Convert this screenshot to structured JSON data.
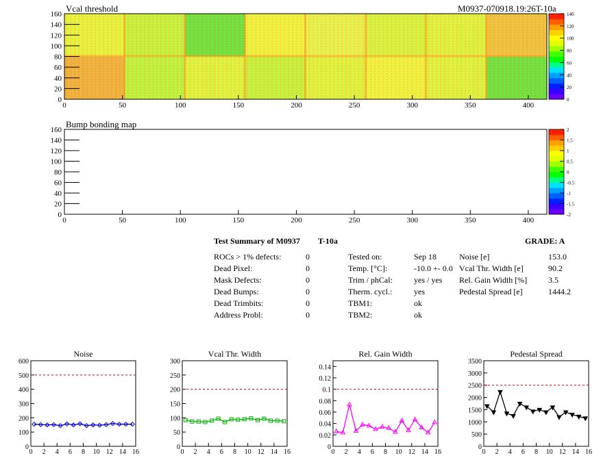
{
  "header": {
    "title": "Vcal threshold",
    "module_id": "M0937-070918.19:26T-10a"
  },
  "bump_title": "Bump bonding map",
  "colors": {
    "palette": [
      "#6a00ff",
      "#3a00ff",
      "#0020ff",
      "#0060ff",
      "#00a0ff",
      "#00e0ff",
      "#00ff80",
      "#00ff00",
      "#40ff00",
      "#a0ff00",
      "#e0ff00",
      "#ffff00",
      "#ffd000",
      "#ffa000",
      "#ff6000",
      "#ff2000"
    ],
    "limit_line": "#cc0000",
    "noise": "#0000cc",
    "vcal": "#00b000",
    "gain": "#ff00ff",
    "pedestal": "#000000"
  },
  "main_plot": {
    "x_ticks": [
      "0",
      "50",
      "100",
      "150",
      "200",
      "250",
      "300",
      "350",
      "400"
    ],
    "y_ticks": [
      "0",
      "20",
      "40",
      "60",
      "80",
      "100",
      "120",
      "140",
      "160"
    ],
    "palette_ticks": [
      "0",
      "20",
      "40",
      "60",
      "80",
      "100",
      "120",
      "140"
    ]
  },
  "bump_plot": {
    "x_ticks": [
      "0",
      "50",
      "100",
      "150",
      "200",
      "250",
      "300",
      "350",
      "400"
    ],
    "y_ticks": [
      "0",
      "20",
      "40",
      "60",
      "80",
      "100",
      "120",
      "140",
      "160"
    ],
    "palette_ticks": [
      "-2",
      "-1.5",
      "-1",
      "-0.5",
      "0",
      "0.5",
      "1",
      "1.5",
      "2"
    ]
  },
  "summary": {
    "title": "Test Summary of M0937",
    "temp_tag": "T-10a",
    "grade": "GRADE:  A",
    "defects": [
      {
        "label": "ROCs > 1% defects:",
        "value": "0"
      },
      {
        "label": "Dead Pixel:",
        "value": "0"
      },
      {
        "label": "Mask Defects:",
        "value": "0"
      },
      {
        "label": "Dead Bumps:",
        "value": "0"
      },
      {
        "label": "Dead Trimbits:",
        "value": "0"
      },
      {
        "label": "Address Probl:",
        "value": "0"
      }
    ],
    "tests": [
      {
        "label": "Tested on:",
        "value": "Sep 18"
      },
      {
        "label": "Temp. [°C]:",
        "value": "-10.0 +- 0.0"
      },
      {
        "label": "Trim / phCal:",
        "value": "yes / yes"
      },
      {
        "label": "Therm. cycl.:",
        "value": "yes"
      },
      {
        "label": "TBM1:",
        "value": "ok"
      },
      {
        "label": "TBM2:",
        "value": "ok"
      }
    ],
    "params": [
      {
        "label": "Noise [e]",
        "value": "153.0"
      },
      {
        "label": "Vcal Thr. Width [e]",
        "value": "90.2"
      },
      {
        "label": "Rel. Gain Width [%]",
        "value": "3.5"
      },
      {
        "label": "Pedestal Spread [e]",
        "value": "1444.2"
      }
    ]
  },
  "chart_data": [
    {
      "type": "line",
      "title": "Noise",
      "x": [
        0,
        1,
        2,
        3,
        4,
        5,
        6,
        7,
        8,
        9,
        10,
        11,
        12,
        13,
        14,
        15
      ],
      "values": [
        155,
        152,
        150,
        152,
        145,
        157,
        150,
        158,
        145,
        150,
        148,
        152,
        160,
        155,
        155,
        155
      ],
      "limit": 500,
      "ylim": [
        0,
        600
      ],
      "y_ticks": [
        "0",
        "100",
        "200",
        "300",
        "400",
        "500",
        "600"
      ],
      "x_ticks": [
        "0",
        "2",
        "4",
        "6",
        "8",
        "10",
        "12",
        "14",
        "16"
      ]
    },
    {
      "type": "line",
      "title": "Vcal Thr. Width",
      "x": [
        0,
        1,
        2,
        3,
        4,
        5,
        6,
        7,
        8,
        9,
        10,
        11,
        12,
        13,
        14,
        15
      ],
      "values": [
        92,
        87,
        87,
        85,
        90,
        97,
        85,
        95,
        93,
        95,
        98,
        92,
        97,
        90,
        90,
        88
      ],
      "limit": 200,
      "ylim": [
        0,
        300
      ],
      "y_ticks": [
        "0",
        "50",
        "100",
        "150",
        "200",
        "250",
        "300"
      ],
      "x_ticks": [
        "0",
        "2",
        "4",
        "6",
        "8",
        "10",
        "12",
        "14",
        "16"
      ]
    },
    {
      "type": "line",
      "title": "Rel. Gain Width",
      "x": [
        0,
        1,
        2,
        3,
        4,
        5,
        6,
        7,
        8,
        9,
        10,
        11,
        12,
        13,
        14,
        15
      ],
      "values": [
        0.026,
        0.024,
        0.073,
        0.027,
        0.038,
        0.036,
        0.03,
        0.034,
        0.032,
        0.025,
        0.045,
        0.028,
        0.047,
        0.033,
        0.024,
        0.042
      ],
      "limit": 0.1,
      "ylim": [
        0,
        0.15
      ],
      "y_ticks": [
        "0",
        "0.02",
        "0.04",
        "0.06",
        "0.08",
        "0.1",
        "0.12",
        "0.14"
      ],
      "x_ticks": [
        "0",
        "2",
        "4",
        "6",
        "8",
        "10",
        "12",
        "14",
        "16"
      ]
    },
    {
      "type": "line",
      "title": "Pedestal Spread",
      "x": [
        0,
        1,
        2,
        3,
        4,
        5,
        6,
        7,
        8,
        9,
        10,
        11,
        12,
        13,
        14,
        15
      ],
      "values": [
        1650,
        1400,
        2230,
        1350,
        1250,
        1750,
        1600,
        1430,
        1500,
        1400,
        1600,
        1200,
        1400,
        1300,
        1220,
        1150
      ],
      "limit": 2500,
      "ylim": [
        0,
        3500
      ],
      "y_ticks": [
        "0",
        "500",
        "1000",
        "1500",
        "2000",
        "2500",
        "3000",
        "3500"
      ],
      "x_ticks": [
        "0",
        "2",
        "4",
        "6",
        "8",
        "10",
        "12",
        "14",
        "16"
      ]
    }
  ]
}
